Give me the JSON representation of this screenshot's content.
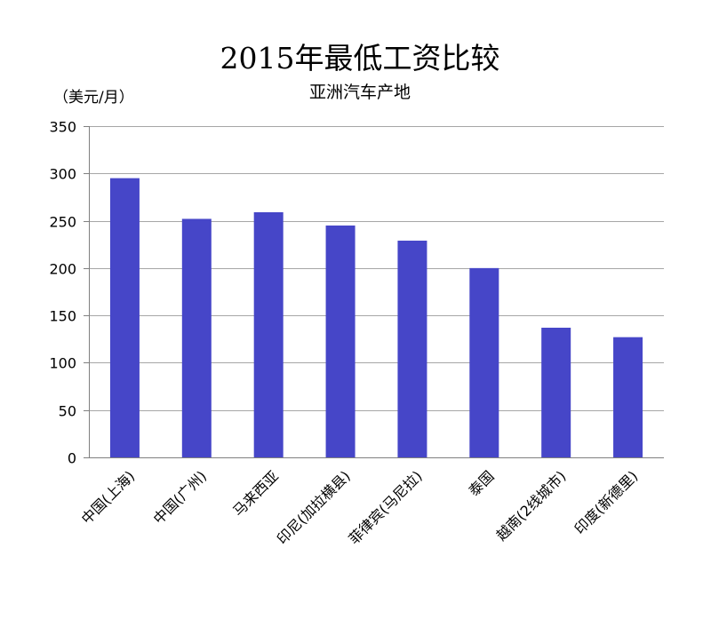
{
  "chart_data": {
    "type": "bar",
    "title": "2015年最低工资比较",
    "subtitle": "亚洲汽车产地",
    "ylabel": "（美元/月）",
    "xlabel": "",
    "categories": [
      "中国(上海)",
      "中国(广州)",
      "马来西亚",
      "印尼(加拉横县)",
      "菲律宾(马尼拉)",
      "泰国",
      "越南(2线城市)",
      "印度(新德里)"
    ],
    "values": [
      295,
      252,
      259,
      245,
      229,
      200,
      137,
      127
    ],
    "ylim": [
      0,
      350
    ],
    "yticks": [
      0,
      50,
      100,
      150,
      200,
      250,
      300,
      350
    ],
    "grid": true,
    "legend": "none",
    "bar_color": "#4646C8",
    "grid_color": "#A6A6A6",
    "axis_color": "#808080"
  }
}
